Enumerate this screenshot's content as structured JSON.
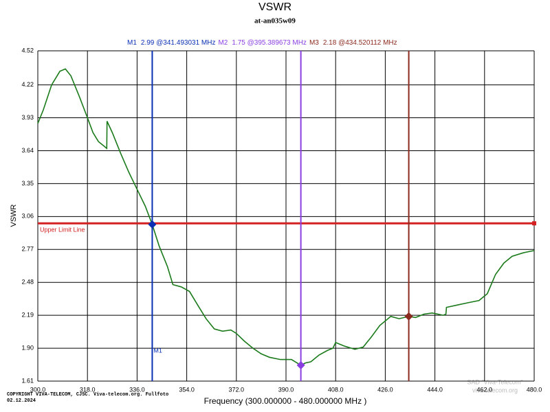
{
  "chart_data": {
    "type": "line",
    "title": "VSWR",
    "subtitle": "at-an035w09",
    "x_label": "Frequency (300.000000 - 480.000000 MHz )",
    "y_label": "VSWR",
    "copyright": "COPYRIGHT VIVA-TELECOM, CJSC. Viva-telecom.org. Fullfoto",
    "date": "02.12.2024",
    "watermark": [
      "SAD \"Viva-Telecom\"",
      "viva-telecom.org"
    ],
    "xlim": [
      300,
      480
    ],
    "ylim": [
      1.61,
      4.52
    ],
    "xticks": [
      {
        "value": 300,
        "label": "300.0"
      },
      {
        "value": 318,
        "label": "318.0"
      },
      {
        "value": 336,
        "label": "336.0"
      },
      {
        "value": 354,
        "label": "354.0"
      },
      {
        "value": 372,
        "label": "372.0"
      },
      {
        "value": 390,
        "label": "390.0"
      },
      {
        "value": 408,
        "label": "408.0"
      },
      {
        "value": 426,
        "label": "426.0"
      },
      {
        "value": 444,
        "label": "444.0"
      },
      {
        "value": 462,
        "label": "462.0"
      },
      {
        "value": 480,
        "label": "480.0"
      }
    ],
    "yticks": [
      1.61,
      {
        "value": 1.9,
        "label": "1.90"
      },
      2.19,
      2.48,
      2.77,
      3.06,
      3.35,
      3.64,
      3.93,
      4.22,
      4.52
    ],
    "grid": true,
    "series": [
      {
        "color": "#1a7a1a",
        "x": [
          300,
          302,
          305,
          308,
          310,
          312,
          315,
          318,
          320,
          322,
          324,
          325,
          325.1,
          327,
          330,
          333,
          336,
          339,
          341.49,
          344,
          347,
          349,
          352,
          355,
          358,
          361,
          364,
          367,
          370,
          372,
          375,
          378,
          381,
          384,
          388,
          392,
          395.39,
          397,
          399,
          402,
          405,
          407,
          408,
          411,
          415,
          418,
          421,
          424,
          428,
          431,
          434.52,
          437,
          440,
          443,
          447,
          448,
          448.2,
          452,
          456,
          460,
          463,
          466,
          469,
          472,
          476,
          480
        ],
        "values": [
          3.88,
          4.0,
          4.22,
          4.34,
          4.36,
          4.3,
          4.12,
          3.93,
          3.8,
          3.72,
          3.68,
          3.66,
          3.9,
          3.8,
          3.62,
          3.45,
          3.3,
          3.15,
          2.99,
          2.8,
          2.62,
          2.46,
          2.44,
          2.4,
          2.28,
          2.16,
          2.07,
          2.05,
          2.06,
          2.03,
          1.96,
          1.9,
          1.85,
          1.82,
          1.8,
          1.8,
          1.75,
          1.77,
          1.78,
          1.84,
          1.88,
          1.9,
          1.95,
          1.92,
          1.89,
          1.91,
          2.0,
          2.1,
          2.18,
          2.16,
          2.18,
          2.17,
          2.2,
          2.21,
          2.19,
          2.2,
          2.26,
          2.28,
          2.3,
          2.32,
          2.38,
          2.55,
          2.65,
          2.71,
          2.74,
          2.76
        ]
      }
    ],
    "limit_line": {
      "label": "Upper Limit Line",
      "value": 3.0,
      "color": "#d42020"
    },
    "markers": [
      {
        "name": "M1",
        "label": "2.99 @341.493031 MHz",
        "x": 341.493031,
        "y": 2.99,
        "color": "#0a2fb4"
      },
      {
        "name": "M2",
        "label": "1.75 @395.389673 MHz",
        "x": 395.389673,
        "y": 1.75,
        "color": "#8a3ee0"
      },
      {
        "name": "M3",
        "label": "2.18 @434.520112 MHz",
        "x": 434.520112,
        "y": 2.18,
        "color": "#8b2a1e"
      }
    ]
  }
}
